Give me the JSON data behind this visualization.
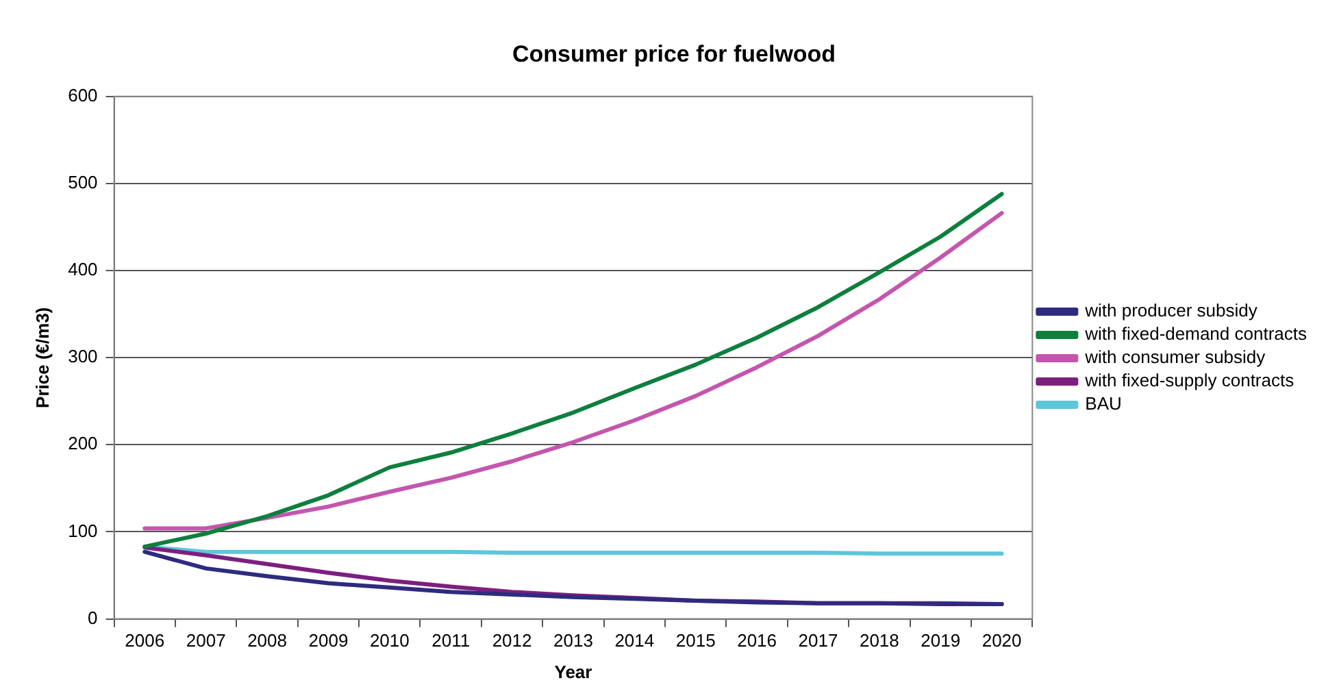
{
  "chart_data": {
    "type": "line",
    "title": "Consumer price for fuelwood",
    "xlabel": "Year",
    "ylabel": "Price (€/m3)",
    "categories": [
      "2006",
      "2007",
      "2008",
      "2009",
      "2010",
      "2011",
      "2012",
      "2013",
      "2014",
      "2015",
      "2016",
      "2017",
      "2018",
      "2019",
      "2020"
    ],
    "series": [
      {
        "name": "with producer subsidy",
        "color": "#2e2b7f",
        "values": [
          77,
          58,
          49,
          41,
          36,
          31,
          28,
          25,
          23,
          21,
          19,
          18,
          18,
          17,
          17
        ]
      },
      {
        "name": "with fixed-demand contracts",
        "color": "#0e7f3e",
        "values": [
          83,
          98,
          118,
          142,
          174,
          191,
          213,
          237,
          265,
          292,
          323,
          358,
          398,
          439,
          488
        ]
      },
      {
        "name": "with consumer subsidy",
        "color": "#c456ad",
        "values": [
          104,
          104,
          116,
          129,
          146,
          162,
          181,
          203,
          228,
          256,
          289,
          325,
          367,
          415,
          466
        ]
      },
      {
        "name": "with fixed-supply contracts",
        "color": "#7d1f7f",
        "values": [
          82,
          73,
          63,
          53,
          44,
          37,
          31,
          27,
          24,
          21,
          20,
          18,
          18,
          18,
          17
        ]
      },
      {
        "name": "BAU",
        "color": "#5bc7d9",
        "values": [
          83,
          77,
          77,
          77,
          77,
          77,
          76,
          76,
          76,
          76,
          76,
          76,
          75,
          75,
          75
        ]
      }
    ],
    "ylim": [
      0,
      600
    ],
    "yticks": [
      0,
      100,
      200,
      300,
      400,
      500,
      600
    ],
    "grid": "y",
    "legend": "right",
    "marker": "none",
    "line_style": "solid"
  }
}
